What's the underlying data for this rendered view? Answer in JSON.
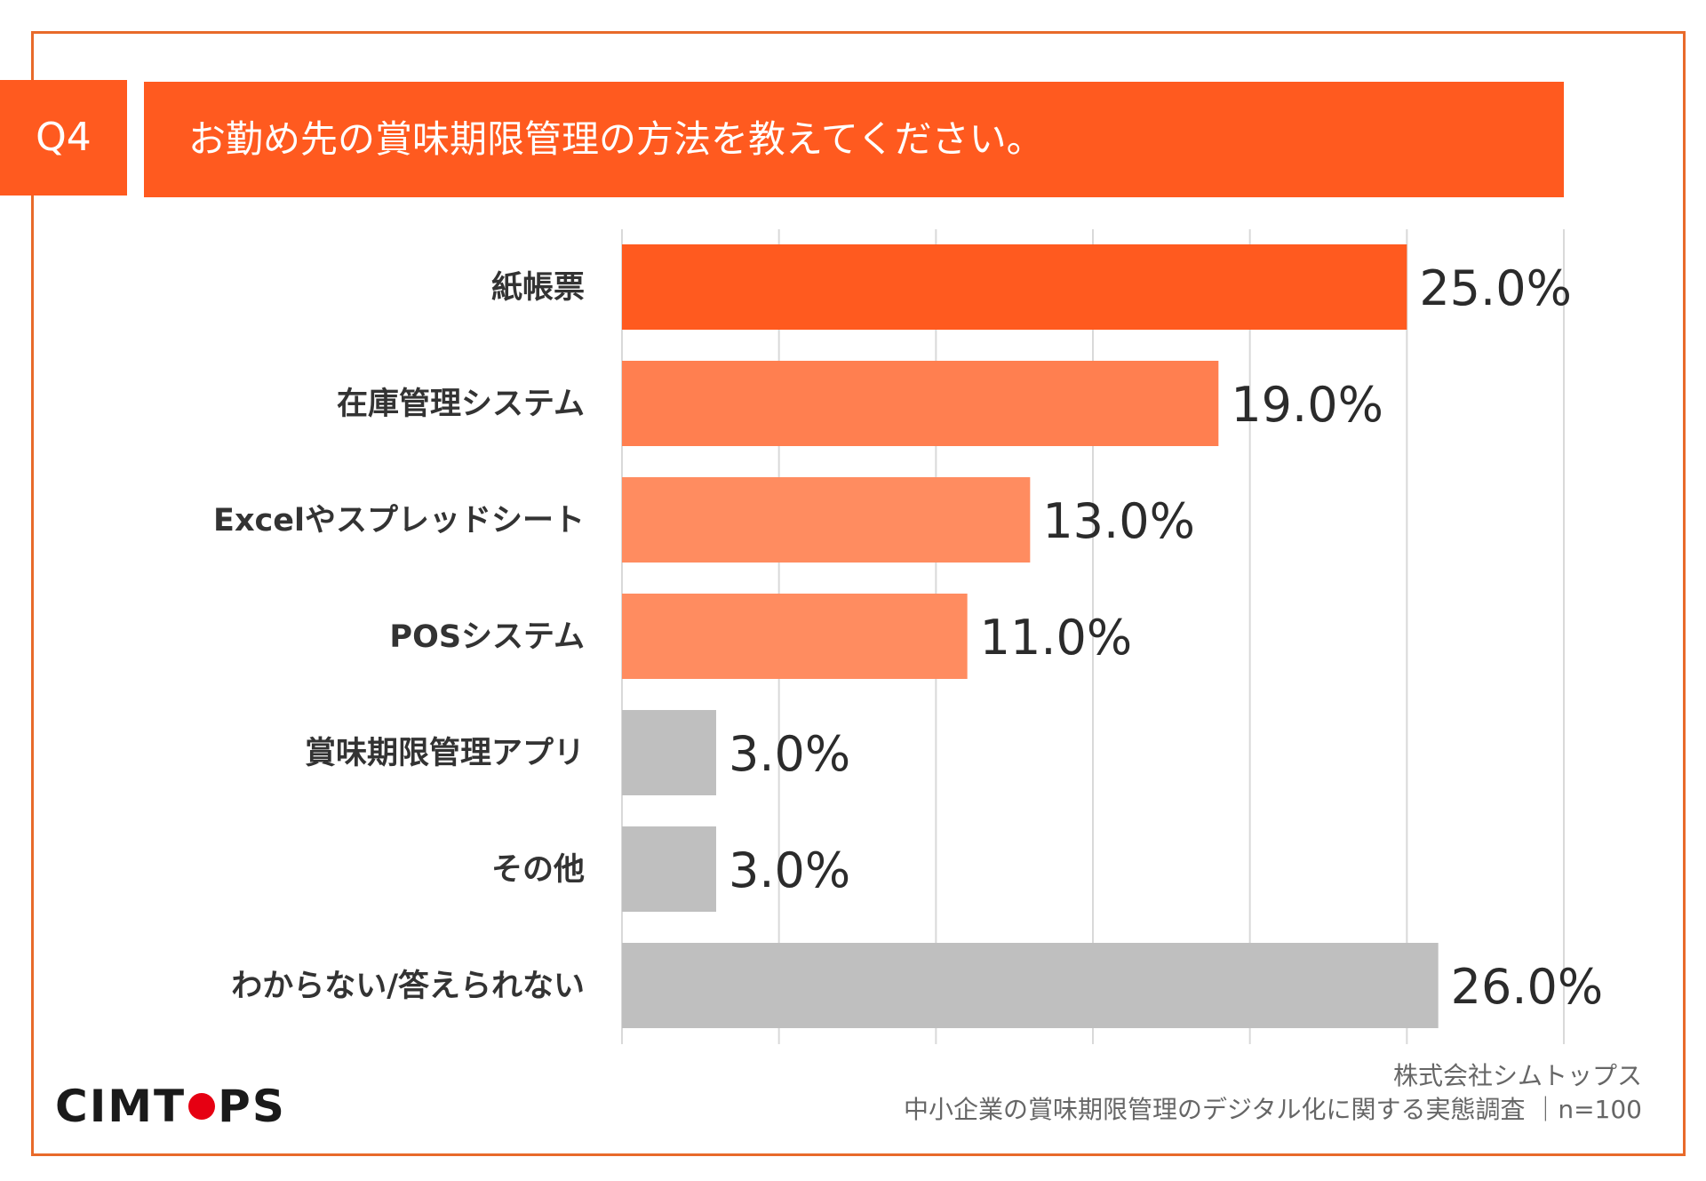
{
  "header": {
    "question_no": "Q4",
    "title": "お勤め先の賞味期限管理の方法を教えてください。"
  },
  "colors": {
    "frame": "#e86a2a",
    "header": "#ff5a1f",
    "series_strong": "#ff5a1f",
    "series_mid": "#ff7f50",
    "series_light": "#ff8c60",
    "series_gray": "#bfbfbf",
    "grid": "#d9d9d9"
  },
  "chart_data": {
    "type": "bar",
    "orientation": "horizontal",
    "title": "お勤め先の賞味期限管理の方法を教えてください。",
    "categories": [
      "紙帳票",
      "在庫管理システム",
      "Excelやスプレッドシート",
      "POSシステム",
      "賞味期限管理アプリ",
      "その他",
      "わからない/答えられない"
    ],
    "values": [
      25.0,
      19.0,
      13.0,
      11.0,
      3.0,
      3.0,
      26.0
    ],
    "value_labels": [
      "25.0%",
      "19.0%",
      "13.0%",
      "11.0%",
      "3.0%",
      "3.0%",
      "26.0%"
    ],
    "bar_colors": [
      "#ff5a1f",
      "#ff7f50",
      "#ff8c60",
      "#ff8c60",
      "#bfbfbf",
      "#bfbfbf",
      "#bfbfbf"
    ],
    "xlim": [
      0,
      30
    ],
    "grid": true,
    "xlabel": "",
    "ylabel": ""
  },
  "footer": {
    "logo_left": "CIMT",
    "logo_o": "O",
    "logo_right": "PS",
    "source_line1": "株式会社シムトップス",
    "source_line2": "中小企業の賞味期限管理のデジタル化に関する実態調査 ｜n=100"
  }
}
